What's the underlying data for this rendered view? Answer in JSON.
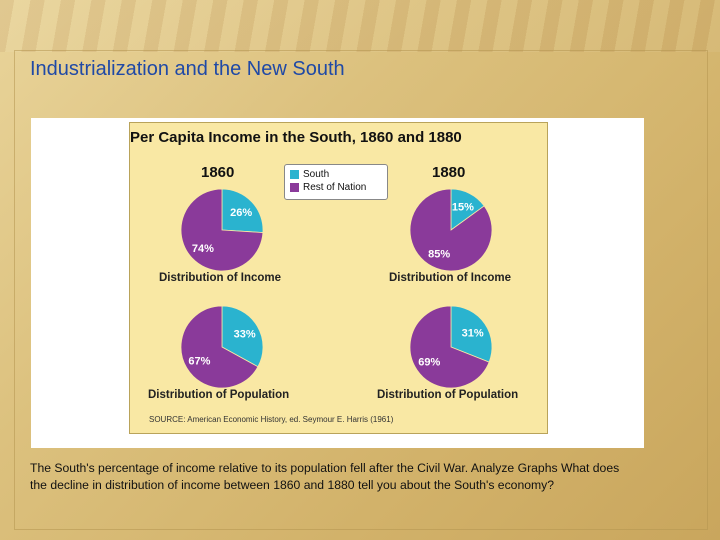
{
  "slide": {
    "title": "Industrialization and the New South",
    "caption": "The South's percentage of income relative to its population fell after the Civil War. Analyze Graphs What does the decline in distribution of income between 1860 and 1880 tell you about the South's economy?"
  },
  "colors": {
    "south": "#2ab3cf",
    "rest_of_nation": "#8a3a9a",
    "chart_bg": "#f9e8a4",
    "title_blue": "#1f49a6"
  },
  "chart_data": {
    "type": "pie",
    "title": "Per Capita Income in the South, 1860 and 1880",
    "legend": {
      "placement": "top-center",
      "entries": [
        "South",
        "Rest of Nation"
      ]
    },
    "source": "SOURCE: American Economic History, ed. Seymour E. Harris (1961)",
    "years": [
      "1860",
      "1880"
    ],
    "charts": [
      {
        "year": "1860",
        "caption": "Distribution of Income",
        "slices": [
          {
            "name": "South",
            "value": 26,
            "label": "26%"
          },
          {
            "name": "Rest of Nation",
            "value": 74,
            "label": "74%"
          }
        ]
      },
      {
        "year": "1880",
        "caption": "Distribution of Income",
        "slices": [
          {
            "name": "South",
            "value": 15,
            "label": "15%"
          },
          {
            "name": "Rest of Nation",
            "value": 85,
            "label": "85%"
          }
        ]
      },
      {
        "year": "1860",
        "caption": "Distribution of Population",
        "slices": [
          {
            "name": "South",
            "value": 33,
            "label": "33%"
          },
          {
            "name": "Rest of Nation",
            "value": 67,
            "label": "67%"
          }
        ]
      },
      {
        "year": "1880",
        "caption": "Distribution of Population",
        "slices": [
          {
            "name": "South",
            "value": 31,
            "label": "31%"
          },
          {
            "name": "Rest of Nation",
            "value": 69,
            "label": "69%"
          }
        ]
      }
    ]
  }
}
